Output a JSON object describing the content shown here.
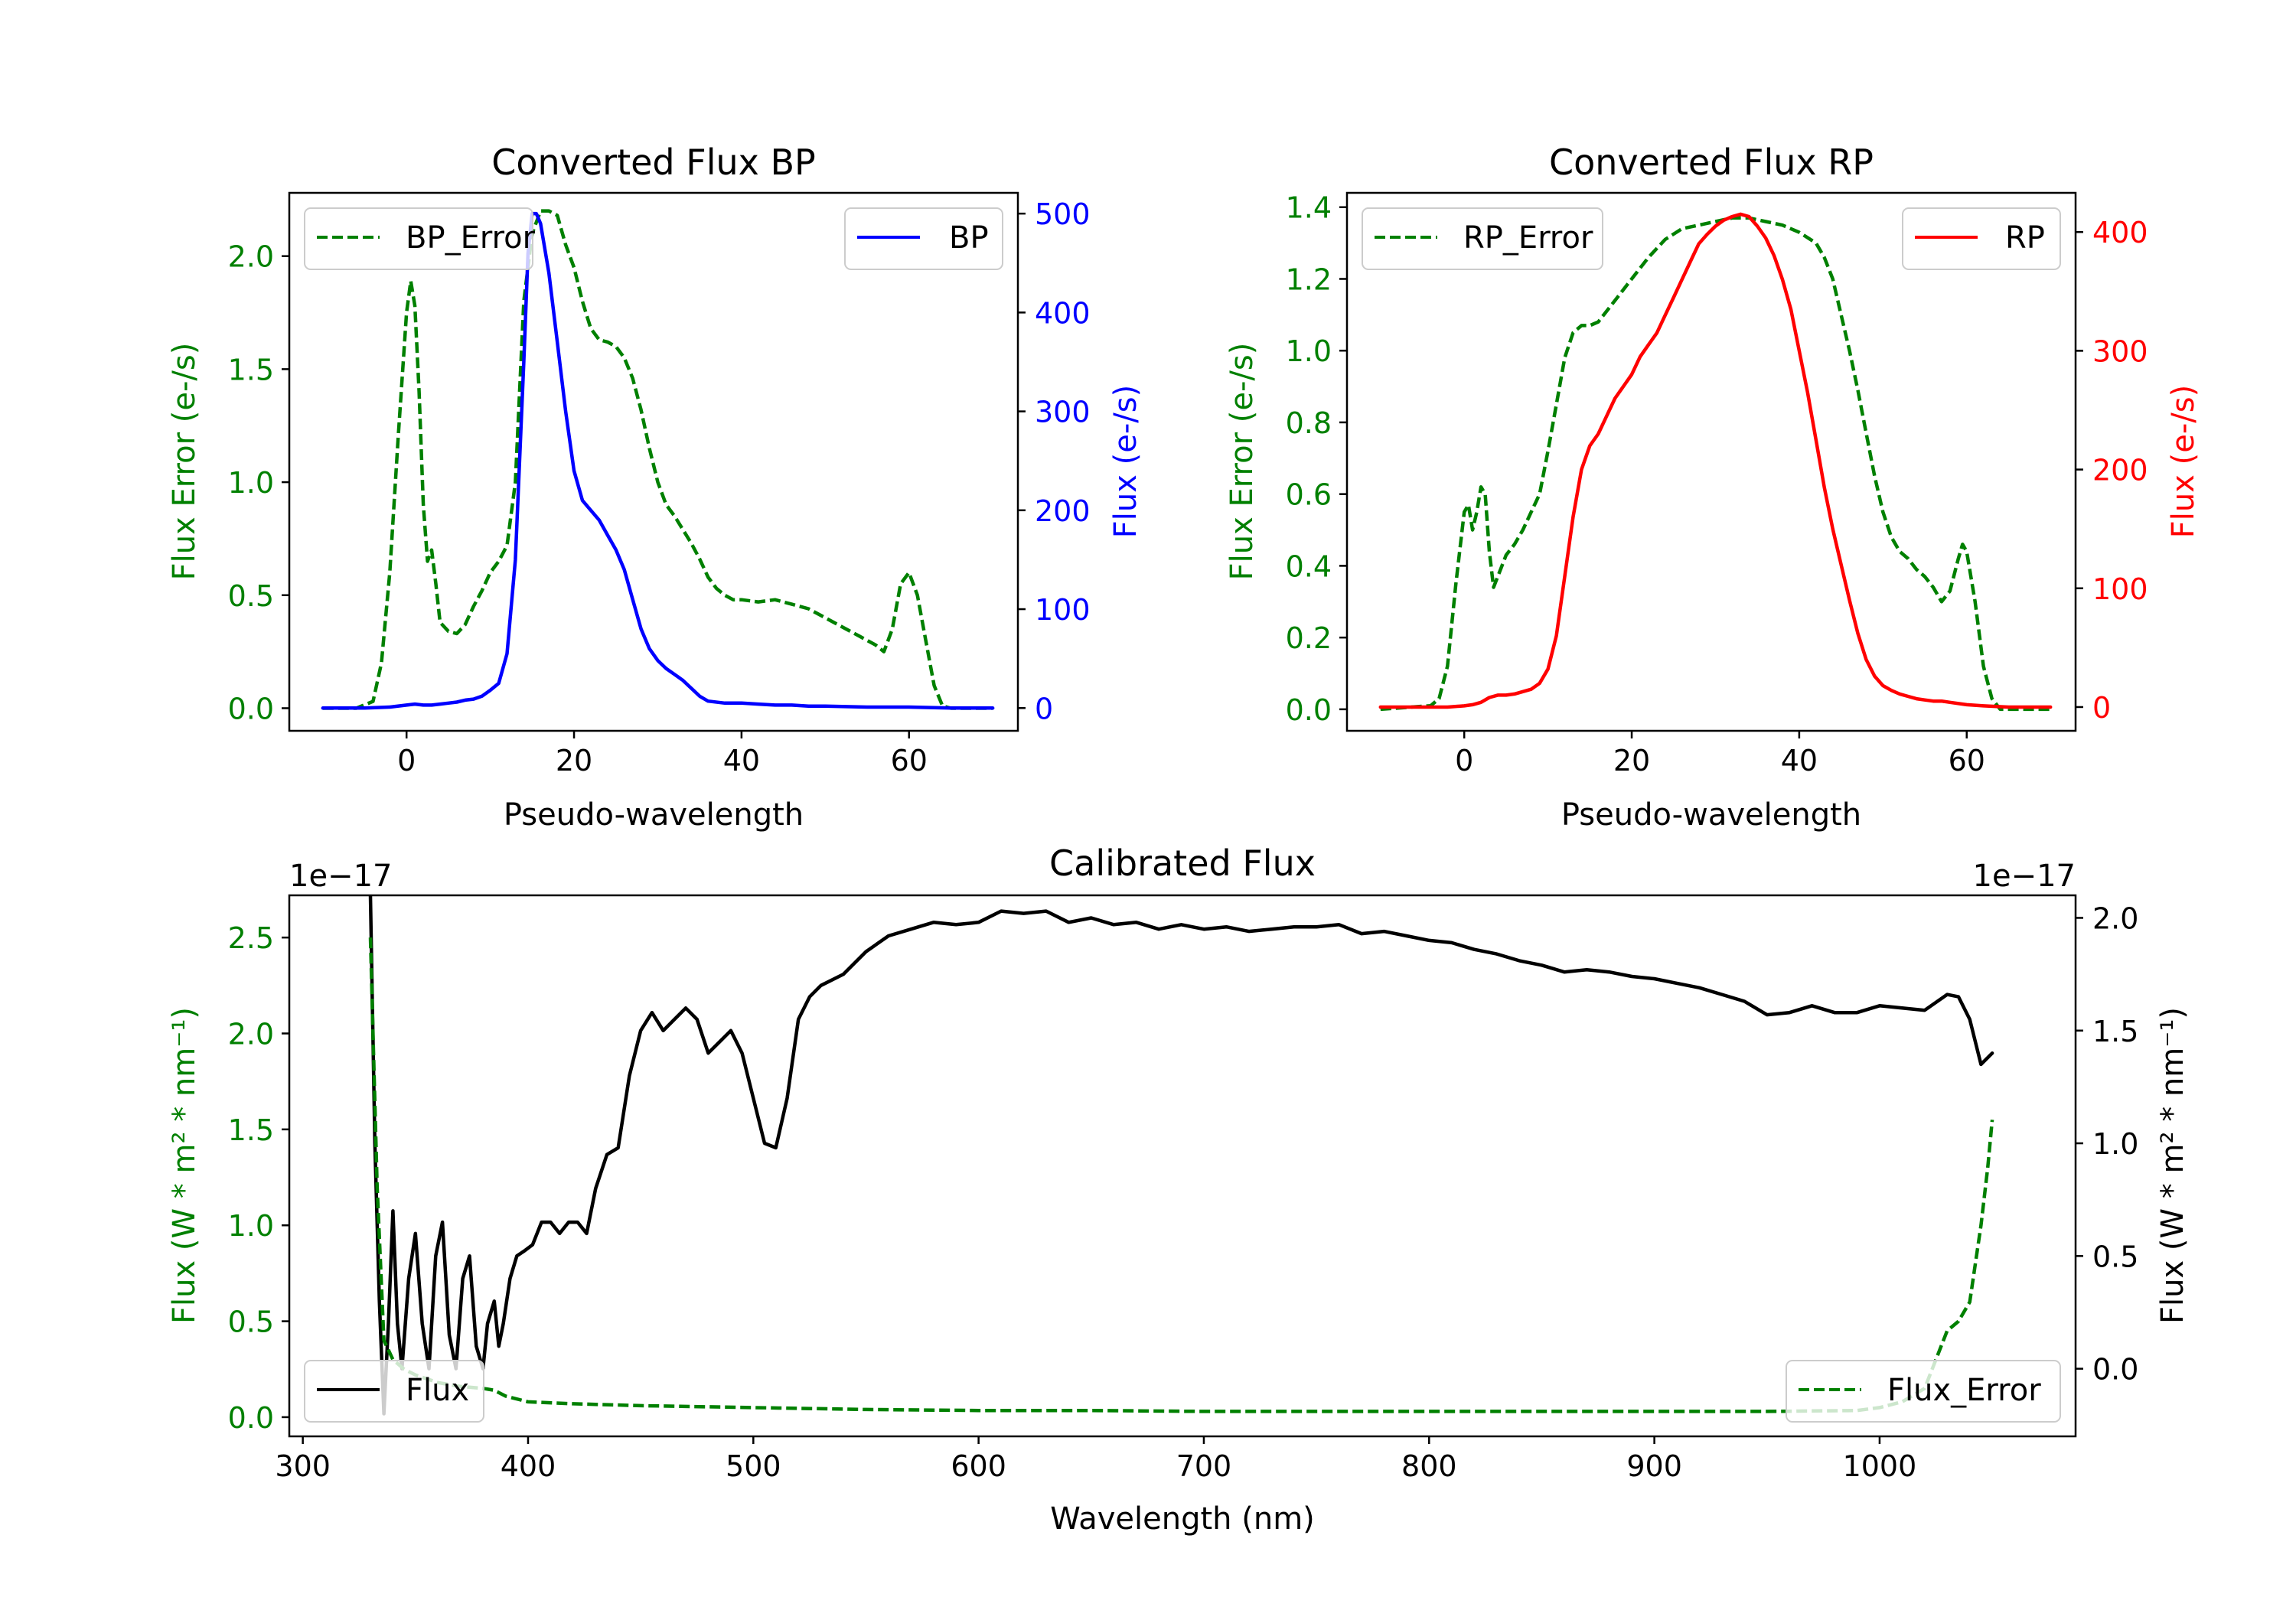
{
  "chart_data": [
    {
      "id": "bp",
      "type": "line",
      "title": "Converted Flux BP",
      "xlabel": "Pseudo-wavelength",
      "ylabel_left": "Flux Error (e-/s)",
      "ylabel_right": "Flux (e-/s)",
      "xlim": [
        -14,
        73
      ],
      "ylim_left": [
        -0.1,
        2.28
      ],
      "ylim_right": [
        -23,
        521
      ],
      "xticks": [
        0,
        20,
        40,
        60
      ],
      "yticks_left": [
        0.0,
        0.5,
        1.0,
        1.5,
        2.0
      ],
      "yticks_left_labels": [
        "0.0",
        "0.5",
        "1.0",
        "1.5",
        "2.0"
      ],
      "yticks_right": [
        0,
        100,
        200,
        300,
        400,
        500
      ],
      "left_axis_color": "#008000",
      "right_axis_color": "#0000ff",
      "series": [
        {
          "name": "BP_Error",
          "axis": "left",
          "color": "#008000",
          "dashed": true,
          "legend": "top-left",
          "x": [
            -10,
            -6,
            -4,
            -3,
            -2,
            -1,
            0,
            0.5,
            1,
            1.5,
            2,
            2.5,
            3,
            3.5,
            4,
            5,
            6,
            7,
            8,
            9,
            10,
            11,
            12,
            13,
            14,
            15,
            16,
            17,
            18,
            19,
            20,
            21,
            22,
            23,
            24,
            25,
            26,
            27,
            28,
            29,
            30,
            31,
            32,
            33,
            34,
            35,
            36,
            37,
            38,
            39,
            40,
            42,
            44,
            46,
            48,
            50,
            52,
            54,
            56,
            57,
            58,
            59,
            60,
            61,
            62,
            63,
            64,
            65,
            66,
            70
          ],
          "values": [
            0.0,
            0.0,
            0.03,
            0.2,
            0.6,
            1.2,
            1.75,
            1.89,
            1.78,
            1.4,
            0.9,
            0.65,
            0.7,
            0.55,
            0.38,
            0.34,
            0.33,
            0.37,
            0.45,
            0.52,
            0.6,
            0.65,
            0.72,
            1.0,
            1.8,
            2.1,
            2.2,
            2.2,
            2.18,
            2.05,
            1.95,
            1.8,
            1.68,
            1.63,
            1.62,
            1.6,
            1.55,
            1.46,
            1.32,
            1.15,
            1.0,
            0.9,
            0.85,
            0.79,
            0.73,
            0.66,
            0.58,
            0.53,
            0.5,
            0.48,
            0.48,
            0.47,
            0.48,
            0.46,
            0.44,
            0.4,
            0.36,
            0.32,
            0.28,
            0.25,
            0.35,
            0.55,
            0.6,
            0.5,
            0.3,
            0.1,
            0.01,
            0.0,
            0.0,
            0.0
          ]
        },
        {
          "name": "BP",
          "axis": "right",
          "color": "#0000ff",
          "dashed": false,
          "legend": "top-right",
          "x": [
            -10,
            -5,
            -2,
            0,
            1,
            2,
            3,
            4,
            5,
            6,
            7,
            8,
            9,
            10,
            11,
            12,
            13,
            14,
            14.5,
            15,
            15.5,
            16,
            17,
            18,
            19,
            20,
            21,
            22,
            23,
            24,
            25,
            26,
            27,
            28,
            29,
            30,
            31,
            32,
            33,
            34,
            35,
            36,
            38,
            40,
            42,
            44,
            46,
            48,
            50,
            55,
            60,
            65,
            70
          ],
          "values": [
            0,
            0,
            1,
            3,
            4,
            3,
            3,
            4,
            5,
            6,
            8,
            9,
            12,
            18,
            25,
            55,
            150,
            350,
            460,
            500,
            500,
            490,
            440,
            370,
            300,
            240,
            210,
            200,
            190,
            175,
            160,
            140,
            110,
            80,
            60,
            48,
            40,
            34,
            28,
            20,
            12,
            7,
            5,
            5,
            4,
            3,
            3,
            2,
            2,
            1,
            1,
            0,
            0
          ]
        }
      ]
    },
    {
      "id": "rp",
      "type": "line",
      "title": "Converted Flux RP",
      "xlabel": "Pseudo-wavelength",
      "ylabel_left": "Flux Error (e-/s)",
      "ylabel_right": "Flux (e-/s)",
      "xlim": [
        -14,
        73
      ],
      "ylim_left": [
        -0.06,
        1.44
      ],
      "ylim_right": [
        -20,
        433
      ],
      "xticks": [
        0,
        20,
        40,
        60
      ],
      "yticks_left": [
        0.0,
        0.2,
        0.4,
        0.6,
        0.8,
        1.0,
        1.2,
        1.4
      ],
      "yticks_left_labels": [
        "0.0",
        "0.2",
        "0.4",
        "0.6",
        "0.8",
        "1.0",
        "1.2",
        "1.4"
      ],
      "yticks_right": [
        0,
        100,
        200,
        300,
        400
      ],
      "left_axis_color": "#008000",
      "right_axis_color": "#ff0000",
      "series": [
        {
          "name": "RP_Error",
          "axis": "left",
          "color": "#008000",
          "dashed": true,
          "legend": "top-left",
          "x": [
            -10,
            -4,
            -3,
            -2,
            -1,
            0,
            0.5,
            1,
            1.5,
            2,
            2.5,
            3,
            3.5,
            4,
            5,
            6,
            7,
            8,
            9,
            10,
            11,
            12,
            13,
            14,
            15,
            16,
            18,
            20,
            22,
            24,
            26,
            28,
            30,
            32,
            34,
            36,
            38,
            40,
            42,
            43,
            44,
            45,
            46,
            47,
            48,
            49,
            50,
            51,
            52,
            53,
            54,
            55,
            56,
            57,
            58,
            59,
            59.5,
            60,
            61,
            62,
            63,
            64,
            66,
            70
          ],
          "values": [
            0.0,
            0.01,
            0.03,
            0.12,
            0.35,
            0.55,
            0.57,
            0.5,
            0.55,
            0.62,
            0.6,
            0.44,
            0.34,
            0.37,
            0.43,
            0.46,
            0.5,
            0.55,
            0.6,
            0.72,
            0.85,
            0.98,
            1.05,
            1.07,
            1.07,
            1.08,
            1.14,
            1.2,
            1.26,
            1.31,
            1.34,
            1.35,
            1.36,
            1.37,
            1.37,
            1.36,
            1.35,
            1.33,
            1.3,
            1.26,
            1.2,
            1.1,
            1.0,
            0.89,
            0.77,
            0.65,
            0.55,
            0.48,
            0.44,
            0.42,
            0.39,
            0.37,
            0.34,
            0.3,
            0.33,
            0.42,
            0.46,
            0.44,
            0.3,
            0.12,
            0.03,
            0.0,
            0.0,
            0.0
          ]
        },
        {
          "name": "RP",
          "axis": "right",
          "color": "#ff0000",
          "dashed": false,
          "legend": "top-right",
          "x": [
            -10,
            -5,
            -2,
            0,
            1,
            2,
            3,
            4,
            5,
            6,
            7,
            8,
            9,
            10,
            11,
            12,
            13,
            14,
            15,
            16,
            17,
            18,
            19,
            20,
            21,
            22,
            23,
            24,
            25,
            26,
            27,
            28,
            29,
            30,
            31,
            32,
            33,
            34,
            35,
            36,
            37,
            38,
            39,
            40,
            41,
            42,
            43,
            44,
            45,
            46,
            47,
            48,
            49,
            50,
            51,
            52,
            53,
            54,
            55,
            56,
            57,
            58,
            60,
            62,
            65,
            70
          ],
          "values": [
            0,
            0,
            0,
            1,
            2,
            4,
            8,
            10,
            10,
            11,
            13,
            15,
            20,
            32,
            60,
            110,
            160,
            200,
            220,
            230,
            245,
            260,
            270,
            280,
            295,
            305,
            315,
            330,
            345,
            360,
            375,
            390,
            398,
            405,
            410,
            413,
            415,
            413,
            405,
            395,
            380,
            360,
            335,
            300,
            265,
            225,
            185,
            150,
            120,
            90,
            62,
            40,
            26,
            18,
            14,
            11,
            9,
            7,
            6,
            5,
            5,
            4,
            2,
            1,
            0,
            0
          ]
        }
      ]
    },
    {
      "id": "cal",
      "type": "line",
      "title": "Calibrated Flux",
      "xlabel": "Wavelength (nm)",
      "ylabel_left": "Flux (W * m² * nm⁻¹)",
      "ylabel_right": "Flux (W * m² * nm⁻¹)",
      "offset_left": "1e−17",
      "offset_right": "1e−17",
      "xlim": [
        294,
        1087
      ],
      "ylim_left": [
        -0.1,
        2.72
      ],
      "ylim_right": [
        -0.3,
        2.1
      ],
      "xticks": [
        300,
        400,
        500,
        600,
        700,
        800,
        900,
        1000
      ],
      "yticks_left": [
        0.0,
        0.5,
        1.0,
        1.5,
        2.0,
        2.5
      ],
      "yticks_left_labels": [
        "0.0",
        "0.5",
        "1.0",
        "1.5",
        "2.0",
        "2.5"
      ],
      "yticks_right": [
        0.0,
        0.5,
        1.0,
        1.5,
        2.0
      ],
      "yticks_right_labels": [
        "0.0",
        "0.5",
        "1.0",
        "1.5",
        "2.0"
      ],
      "left_axis_color": "#008000",
      "right_axis_color": "#000000",
      "series": [
        {
          "name": "Flux",
          "axis": "right",
          "color": "#000000",
          "dashed": false,
          "legend": "bottom-left",
          "x": [
            330,
            332,
            334,
            336,
            338,
            340,
            342,
            344,
            347,
            350,
            353,
            356,
            359,
            362,
            365,
            368,
            371,
            374,
            377,
            380,
            382,
            385,
            387,
            389,
            392,
            395,
            398,
            402,
            406,
            410,
            414,
            418,
            422,
            426,
            430,
            435,
            440,
            445,
            450,
            455,
            460,
            465,
            470,
            475,
            480,
            485,
            490,
            495,
            500,
            505,
            510,
            515,
            520,
            525,
            530,
            540,
            550,
            560,
            570,
            580,
            590,
            600,
            610,
            620,
            630,
            640,
            650,
            660,
            670,
            680,
            690,
            700,
            710,
            720,
            730,
            740,
            750,
            760,
            770,
            780,
            790,
            800,
            810,
            820,
            830,
            840,
            850,
            860,
            870,
            880,
            890,
            900,
            910,
            920,
            930,
            940,
            950,
            960,
            970,
            980,
            990,
            1000,
            1010,
            1020,
            1030,
            1035,
            1040,
            1045,
            1050
          ],
          "values": [
            2.1,
            1.0,
            0.3,
            -0.2,
            0.2,
            0.7,
            0.2,
            0.0,
            0.4,
            0.6,
            0.2,
            0.0,
            0.5,
            0.65,
            0.15,
            0.0,
            0.4,
            0.5,
            0.1,
            0.0,
            0.2,
            0.3,
            0.1,
            0.2,
            0.4,
            0.5,
            0.52,
            0.55,
            0.65,
            0.65,
            0.6,
            0.65,
            0.65,
            0.6,
            0.8,
            0.95,
            0.98,
            1.3,
            1.5,
            1.58,
            1.5,
            1.55,
            1.6,
            1.55,
            1.4,
            1.45,
            1.5,
            1.4,
            1.2,
            1.0,
            0.98,
            1.2,
            1.55,
            1.65,
            1.7,
            1.75,
            1.85,
            1.92,
            1.95,
            1.98,
            1.97,
            1.98,
            2.03,
            2.02,
            2.03,
            1.98,
            2.0,
            1.97,
            1.98,
            1.95,
            1.97,
            1.95,
            1.96,
            1.94,
            1.95,
            1.96,
            1.96,
            1.97,
            1.93,
            1.94,
            1.92,
            1.9,
            1.89,
            1.86,
            1.84,
            1.81,
            1.79,
            1.76,
            1.77,
            1.76,
            1.74,
            1.73,
            1.71,
            1.69,
            1.66,
            1.63,
            1.57,
            1.58,
            1.61,
            1.58,
            1.58,
            1.61,
            1.6,
            1.59,
            1.66,
            1.65,
            1.55,
            1.35,
            1.4
          ]
        },
        {
          "name": "Flux_Error",
          "axis": "left",
          "color": "#008000",
          "dashed": true,
          "legend": "bottom-right",
          "x": [
            330,
            333,
            336,
            340,
            345,
            350,
            360,
            370,
            380,
            385,
            390,
            400,
            420,
            450,
            500,
            550,
            600,
            650,
            700,
            750,
            800,
            850,
            900,
            950,
            990,
            1000,
            1010,
            1020,
            1025,
            1030,
            1035,
            1040,
            1045,
            1048,
            1050
          ],
          "values": [
            2.5,
            1.2,
            0.4,
            0.3,
            0.25,
            0.22,
            0.18,
            0.16,
            0.15,
            0.14,
            0.11,
            0.08,
            0.07,
            0.06,
            0.05,
            0.04,
            0.035,
            0.035,
            0.03,
            0.03,
            0.03,
            0.03,
            0.03,
            0.03,
            0.035,
            0.05,
            0.08,
            0.15,
            0.3,
            0.45,
            0.5,
            0.6,
            1.0,
            1.3,
            1.55
          ]
        }
      ]
    }
  ]
}
